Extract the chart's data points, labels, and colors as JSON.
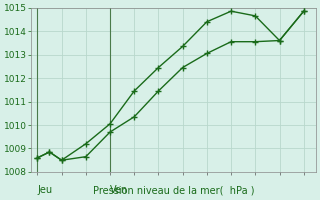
{
  "line1_x": [
    0,
    1,
    2,
    4,
    6,
    8,
    10,
    12,
    14,
    16,
    18,
    20,
    22
  ],
  "line1_y": [
    1008.6,
    1008.85,
    1008.5,
    1009.2,
    1010.05,
    1011.45,
    1012.45,
    1013.35,
    1014.4,
    1014.85,
    1014.65,
    1013.6,
    1014.85
  ],
  "line2_x": [
    0,
    1,
    2,
    4,
    6,
    8,
    10,
    12,
    14,
    16,
    18,
    20,
    22
  ],
  "line2_y": [
    1008.6,
    1008.85,
    1008.5,
    1008.65,
    1009.7,
    1010.35,
    1011.45,
    1012.45,
    1013.05,
    1013.55,
    1013.55,
    1013.6,
    1014.85
  ],
  "line_color": "#1a6b1a",
  "bg_color": "#d8f0e8",
  "grid_color": "#b8d8cc",
  "xlabel": "Pression niveau de la mer(  hPa )",
  "ylim": [
    1008,
    1015
  ],
  "yticks": [
    1008,
    1009,
    1010,
    1011,
    1012,
    1013,
    1014,
    1015
  ],
  "jeu_x": 0,
  "ven_x": 6,
  "xlim_min": -0.5,
  "xlim_max": 23,
  "grid_x_step": 2,
  "label_fontsize": 7,
  "ytick_fontsize": 6.5
}
